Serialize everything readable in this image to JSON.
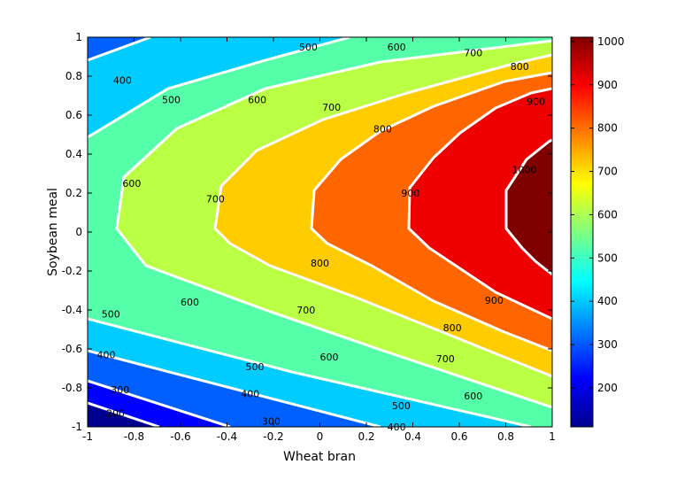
{
  "chart_data": {
    "type": "heatmap",
    "subtype": "filled-contour",
    "title": "",
    "xlabel": "Wheat bran",
    "ylabel": "Soybean meal",
    "xlim": [
      -1,
      1
    ],
    "ylim": [
      -1,
      1
    ],
    "xticks": [
      "-1",
      "-0.8",
      "-0.6",
      "-0.4",
      "-0.2",
      "0",
      "0.2",
      "0.4",
      "0.6",
      "0.8",
      "1"
    ],
    "yticks": [
      "1",
      "0.8",
      "0.6",
      "0.4",
      "0.2",
      "0",
      "-0.2",
      "-0.4",
      "-0.6",
      "-0.8",
      "-1"
    ],
    "colorbar": {
      "range": [
        110,
        1010
      ],
      "ticks": [
        "1000",
        "900",
        "800",
        "700",
        "600",
        "500",
        "400",
        "300",
        "200"
      ],
      "colormap": "jet"
    },
    "levels": [
      200,
      300,
      400,
      500,
      600,
      700,
      800,
      900,
      1000
    ],
    "contour_labels": [
      {
        "text": "500",
        "x": -0.05,
        "y": 0.95
      },
      {
        "text": "600",
        "x": 0.33,
        "y": 0.95
      },
      {
        "text": "700",
        "x": 0.66,
        "y": 0.92
      },
      {
        "text": "800",
        "x": 0.86,
        "y": 0.85
      },
      {
        "text": "400",
        "x": -0.85,
        "y": 0.78
      },
      {
        "text": "500",
        "x": -0.64,
        "y": 0.68
      },
      {
        "text": "600",
        "x": -0.27,
        "y": 0.68
      },
      {
        "text": "700",
        "x": 0.05,
        "y": 0.64
      },
      {
        "text": "800",
        "x": 0.27,
        "y": 0.53
      },
      {
        "text": "900",
        "x": 0.93,
        "y": 0.67
      },
      {
        "text": "600",
        "x": -0.81,
        "y": 0.25
      },
      {
        "text": "700",
        "x": -0.45,
        "y": 0.17
      },
      {
        "text": "900",
        "x": 0.39,
        "y": 0.2
      },
      {
        "text": "1000",
        "x": 0.88,
        "y": 0.32
      },
      {
        "text": "800",
        "x": 0.0,
        "y": -0.16
      },
      {
        "text": "600",
        "x": -0.56,
        "y": -0.36
      },
      {
        "text": "700",
        "x": -0.06,
        "y": -0.4
      },
      {
        "text": "900",
        "x": 0.75,
        "y": -0.35
      },
      {
        "text": "800",
        "x": 0.57,
        "y": -0.49
      },
      {
        "text": "500",
        "x": -0.9,
        "y": -0.42
      },
      {
        "text": "600",
        "x": 0.04,
        "y": -0.64
      },
      {
        "text": "700",
        "x": 0.54,
        "y": -0.65
      },
      {
        "text": "400",
        "x": -0.92,
        "y": -0.63
      },
      {
        "text": "500",
        "x": -0.28,
        "y": -0.69
      },
      {
        "text": "300",
        "x": -0.86,
        "y": -0.81
      },
      {
        "text": "400",
        "x": -0.3,
        "y": -0.83
      },
      {
        "text": "600",
        "x": 0.66,
        "y": -0.84
      },
      {
        "text": "500",
        "x": 0.35,
        "y": -0.89
      },
      {
        "text": "200",
        "x": -0.88,
        "y": -0.93
      },
      {
        "text": "300",
        "x": -0.21,
        "y": -0.97
      },
      {
        "text": "400",
        "x": 0.33,
        "y": -1.0
      }
    ]
  }
}
